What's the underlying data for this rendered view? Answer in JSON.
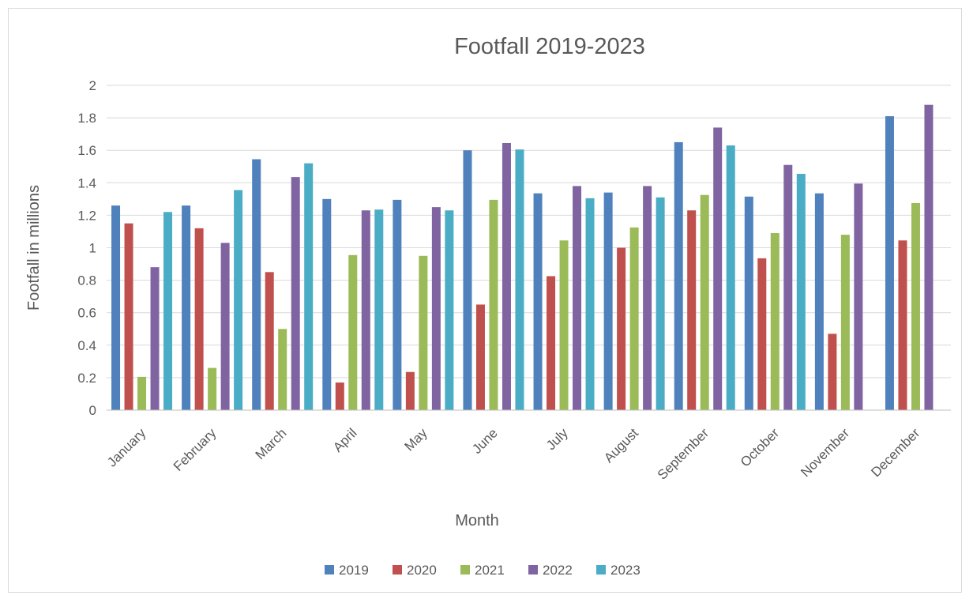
{
  "chart_data": {
    "type": "bar",
    "title": "Footfall 2019-2023",
    "xlabel": "Month",
    "ylabel": "Footfall in millions",
    "ylim": [
      0,
      2
    ],
    "yticks": [
      "0",
      "0.2",
      "0.4",
      "0.6",
      "0.8",
      "1",
      "1.2",
      "1.4",
      "1.6",
      "1.8",
      "2"
    ],
    "grid": true,
    "legend_position": "bottom",
    "categories": [
      "January",
      "February",
      "March",
      "April",
      "May",
      "June",
      "July",
      "August",
      "September",
      "October",
      "November",
      "December"
    ],
    "series": [
      {
        "name": "2019",
        "color": "#4f81bd",
        "values": [
          1.26,
          1.26,
          1.545,
          1.3,
          1.295,
          1.6,
          1.335,
          1.34,
          1.65,
          1.315,
          1.335,
          1.81
        ]
      },
      {
        "name": "2020",
        "color": "#c0504d",
        "values": [
          1.15,
          1.12,
          0.85,
          0.17,
          0.235,
          0.65,
          0.825,
          1.0,
          1.23,
          0.935,
          0.47,
          1.045
        ]
      },
      {
        "name": "2021",
        "color": "#9bbb59",
        "values": [
          0.205,
          0.26,
          0.5,
          0.955,
          0.95,
          1.295,
          1.045,
          1.125,
          1.325,
          1.09,
          1.08,
          1.275
        ]
      },
      {
        "name": "2022",
        "color": "#8064a2",
        "values": [
          0.88,
          1.03,
          1.435,
          1.23,
          1.25,
          1.645,
          1.38,
          1.38,
          1.74,
          1.51,
          1.395,
          1.88
        ]
      },
      {
        "name": "2023",
        "color": "#4bacc6",
        "values": [
          1.22,
          1.355,
          1.52,
          1.235,
          1.23,
          1.605,
          1.305,
          1.31,
          1.63,
          1.455,
          null,
          null
        ]
      }
    ]
  }
}
